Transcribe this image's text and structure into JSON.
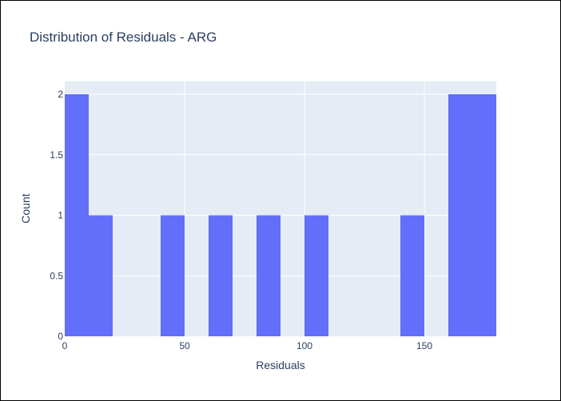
{
  "chart_data": {
    "type": "bar",
    "title": "Distribution of Residuals - ARG",
    "xlabel": "Residuals",
    "ylabel": "Count",
    "xlim": [
      0,
      180
    ],
    "ylim": [
      0,
      2
    ],
    "bin_width": 10,
    "bins": [
      {
        "x0": 0,
        "x1": 10,
        "count": 2
      },
      {
        "x0": 10,
        "x1": 20,
        "count": 1
      },
      {
        "x0": 40,
        "x1": 50,
        "count": 1
      },
      {
        "x0": 60,
        "x1": 70,
        "count": 1
      },
      {
        "x0": 80,
        "x1": 90,
        "count": 1
      },
      {
        "x0": 100,
        "x1": 110,
        "count": 1
      },
      {
        "x0": 140,
        "x1": 150,
        "count": 1
      },
      {
        "x0": 160,
        "x1": 170,
        "count": 2
      },
      {
        "x0": 170,
        "x1": 180,
        "count": 2
      }
    ],
    "x_ticks": [
      0,
      50,
      100,
      150
    ],
    "y_ticks": [
      0,
      0.5,
      1,
      1.5,
      2
    ],
    "y_tick_labels": [
      "0",
      "0.5",
      "1",
      "1.5",
      "2"
    ],
    "grid": true,
    "colors": {
      "bar": "#636efa",
      "plot_background": "#e5ecf6",
      "grid": "#ffffff",
      "text": "#2a3f5f"
    }
  }
}
